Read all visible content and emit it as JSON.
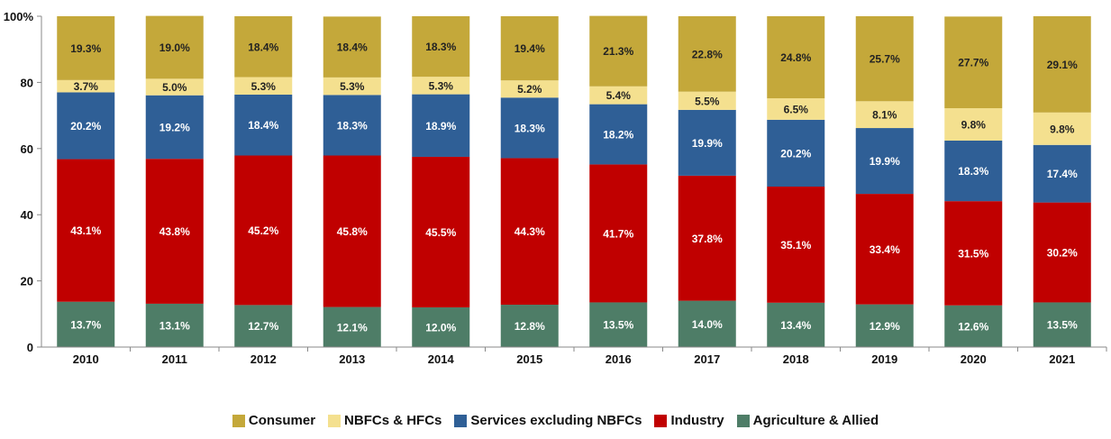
{
  "chart_data": {
    "type": "bar",
    "stacked": true,
    "categories": [
      "2010",
      "2011",
      "2012",
      "2013",
      "2014",
      "2015",
      "2016",
      "2017",
      "2018",
      "2019",
      "2020",
      "2021"
    ],
    "ylim": [
      0,
      100
    ],
    "yticks": [
      "0",
      "20",
      "40",
      "60",
      "80",
      "100%"
    ],
    "ytick_values": [
      0,
      20,
      40,
      60,
      80,
      100
    ],
    "legend_position": "bottom",
    "series": [
      {
        "name": "Agriculture & Allied",
        "color": "#4e7d67",
        "label_color": "#ffffff",
        "values": [
          13.7,
          13.1,
          12.7,
          12.1,
          12.0,
          12.8,
          13.5,
          14.0,
          13.4,
          12.9,
          12.6,
          13.5
        ],
        "labels": [
          "13.7%",
          "13.1%",
          "12.7%",
          "12.1%",
          "12.0%",
          "12.8%",
          "13.5%",
          "14.0%",
          "13.4%",
          "12.9%",
          "12.6%",
          "13.5%"
        ]
      },
      {
        "name": "Industry",
        "color": "#c00000",
        "label_color": "#ffffff",
        "values": [
          43.1,
          43.8,
          45.2,
          45.8,
          45.5,
          44.3,
          41.7,
          37.8,
          35.1,
          33.4,
          31.5,
          30.2
        ],
        "labels": [
          "43.1%",
          "43.8%",
          "45.2%",
          "45.8%",
          "45.5%",
          "44.3%",
          "41.7%",
          "37.8%",
          "35.1%",
          "33.4%",
          "31.5%",
          "30.2%"
        ]
      },
      {
        "name": "Services excluding NBFCs",
        "color": "#2f5f96",
        "label_color": "#ffffff",
        "values": [
          20.2,
          19.2,
          18.4,
          18.3,
          18.9,
          18.3,
          18.2,
          19.9,
          20.2,
          19.9,
          18.3,
          17.4
        ],
        "labels": [
          "20.2%",
          "19.2%",
          "18.4%",
          "18.3%",
          "18.9%",
          "18.3%",
          "18.2%",
          "19.9%",
          "20.2%",
          "19.9%",
          "18.3%",
          "17.4%"
        ]
      },
      {
        "name": "NBFCs & HFCs",
        "color": "#f4e08f",
        "label_color": "#222222",
        "values": [
          3.7,
          5.0,
          5.3,
          5.3,
          5.3,
          5.2,
          5.4,
          5.5,
          6.5,
          8.1,
          9.8,
          9.8
        ],
        "labels": [
          "3.7%",
          "5.0%",
          "5.3%",
          "5.3%",
          "5.3%",
          "5.2%",
          "5.4%",
          "5.5%",
          "6.5%",
          "8.1%",
          "9.8%",
          "9.8%"
        ]
      },
      {
        "name": "Consumer",
        "color": "#c4a83a",
        "label_color": "#222222",
        "values": [
          19.3,
          19.0,
          18.4,
          18.4,
          18.3,
          19.4,
          21.3,
          22.8,
          24.8,
          25.7,
          27.7,
          29.1
        ],
        "labels": [
          "19.3%",
          "19.0%",
          "18.4%",
          "18.4%",
          "18.3%",
          "19.4%",
          "21.3%",
          "22.8%",
          "24.8%",
          "25.7%",
          "27.7%",
          "29.1%"
        ]
      }
    ],
    "legend_order": [
      "Consumer",
      "NBFCs & HFCs",
      "Services excluding NBFCs",
      "Industry",
      "Agriculture & Allied"
    ]
  }
}
